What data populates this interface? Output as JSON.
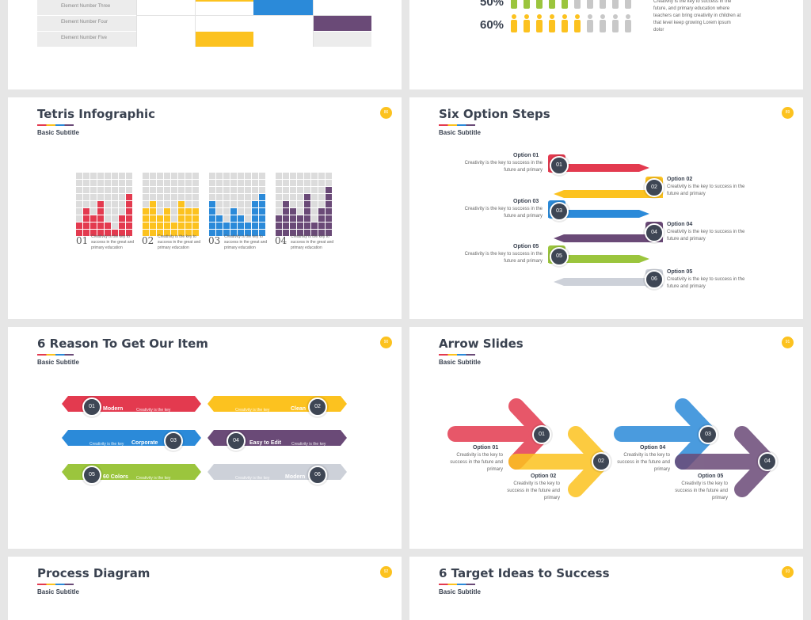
{
  "colors": {
    "red": "#e33a4f",
    "yellow": "#fcc21f",
    "blue": "#2b8ad9",
    "purple": "#6a4a77",
    "green": "#9bc53d",
    "grey": "#cdd1d9",
    "dark": "#3e4654"
  },
  "slide_top_left": {
    "rows": [
      "Element Number Three",
      "Element Number Four",
      "Element Number Five"
    ]
  },
  "slide_top_right": {
    "labels": [
      "50%",
      "60%"
    ],
    "text": "Creativity is the key to success in the future, and primary education where teachers can bring creativity in children at that level keep growing Lorem ipsum dolor"
  },
  "tetris": {
    "title": "Tetris Infographic",
    "subtitle": "Basic Subtitle",
    "page": "86",
    "items": [
      {
        "num": "01",
        "text": "Creativity is the key to success in the great and primary education"
      },
      {
        "num": "02",
        "text": "Creativity is the key to success in the great and primary education"
      },
      {
        "num": "03",
        "text": "Creativity is the key to success in the great and primary education"
      },
      {
        "num": "04",
        "text": "Creativity is the key to success in the great and primary education"
      }
    ]
  },
  "six_steps": {
    "title": "Six Option Steps",
    "subtitle": "Basic Subtitle",
    "page": "89",
    "options": [
      {
        "num": "01",
        "label": "Option 01",
        "text": "Creativity is the key to success in the future and primary"
      },
      {
        "num": "02",
        "label": "Option 02",
        "text": "Creativity is the key to success in the future and primary"
      },
      {
        "num": "03",
        "label": "Option 03",
        "text": "Creativity is the key to success in the future and primary"
      },
      {
        "num": "04",
        "label": "Option 04",
        "text": "Creativity is the key to success in the future and primary"
      },
      {
        "num": "05",
        "label": "Option 05",
        "text": "Creativity is the key to success in the future and primary"
      },
      {
        "num": "06",
        "label": "Option 05",
        "text": "Creativity is the key to success in the future and primary"
      }
    ]
  },
  "reasons": {
    "title": "6 Reason To Get Our Item",
    "subtitle": "Basic Subtitle",
    "page": "90",
    "items": [
      {
        "num": "01",
        "label": "Modern",
        "desc": "Creativity is the key"
      },
      {
        "num": "02",
        "label": "Clean",
        "desc": "Creativity is the key"
      },
      {
        "num": "03",
        "label": "Corporate",
        "desc": "Creativity is the key"
      },
      {
        "num": "04",
        "label": "Easy to Edit",
        "desc": "Creativity is the key"
      },
      {
        "num": "05",
        "label": "60 Colors",
        "desc": "Creativity is the key"
      },
      {
        "num": "06",
        "label": "Modern",
        "desc": "Creativity is the key"
      }
    ]
  },
  "arrows": {
    "title": "Arrow Slides",
    "subtitle": "Basic Subtitle",
    "page": "91",
    "options": [
      {
        "num": "01",
        "label": "Option 01",
        "text": "Creativity is the key to success in the future and primary"
      },
      {
        "num": "02",
        "label": "Option 02",
        "text": "Creativity is the key to success in the future and primary"
      },
      {
        "num": "03",
        "label": "Option 04",
        "text": "Creativity is the key to success in the future and primary"
      },
      {
        "num": "04",
        "label": "Option 05",
        "text": "Creativity is the key to success in the future and primary"
      }
    ]
  },
  "process": {
    "title": "Process Diagram",
    "subtitle": "Basic Subtitle",
    "page": "92"
  },
  "targets": {
    "title": "6 Target Ideas to Success",
    "subtitle": "Basic Subtitle",
    "page": "93"
  }
}
